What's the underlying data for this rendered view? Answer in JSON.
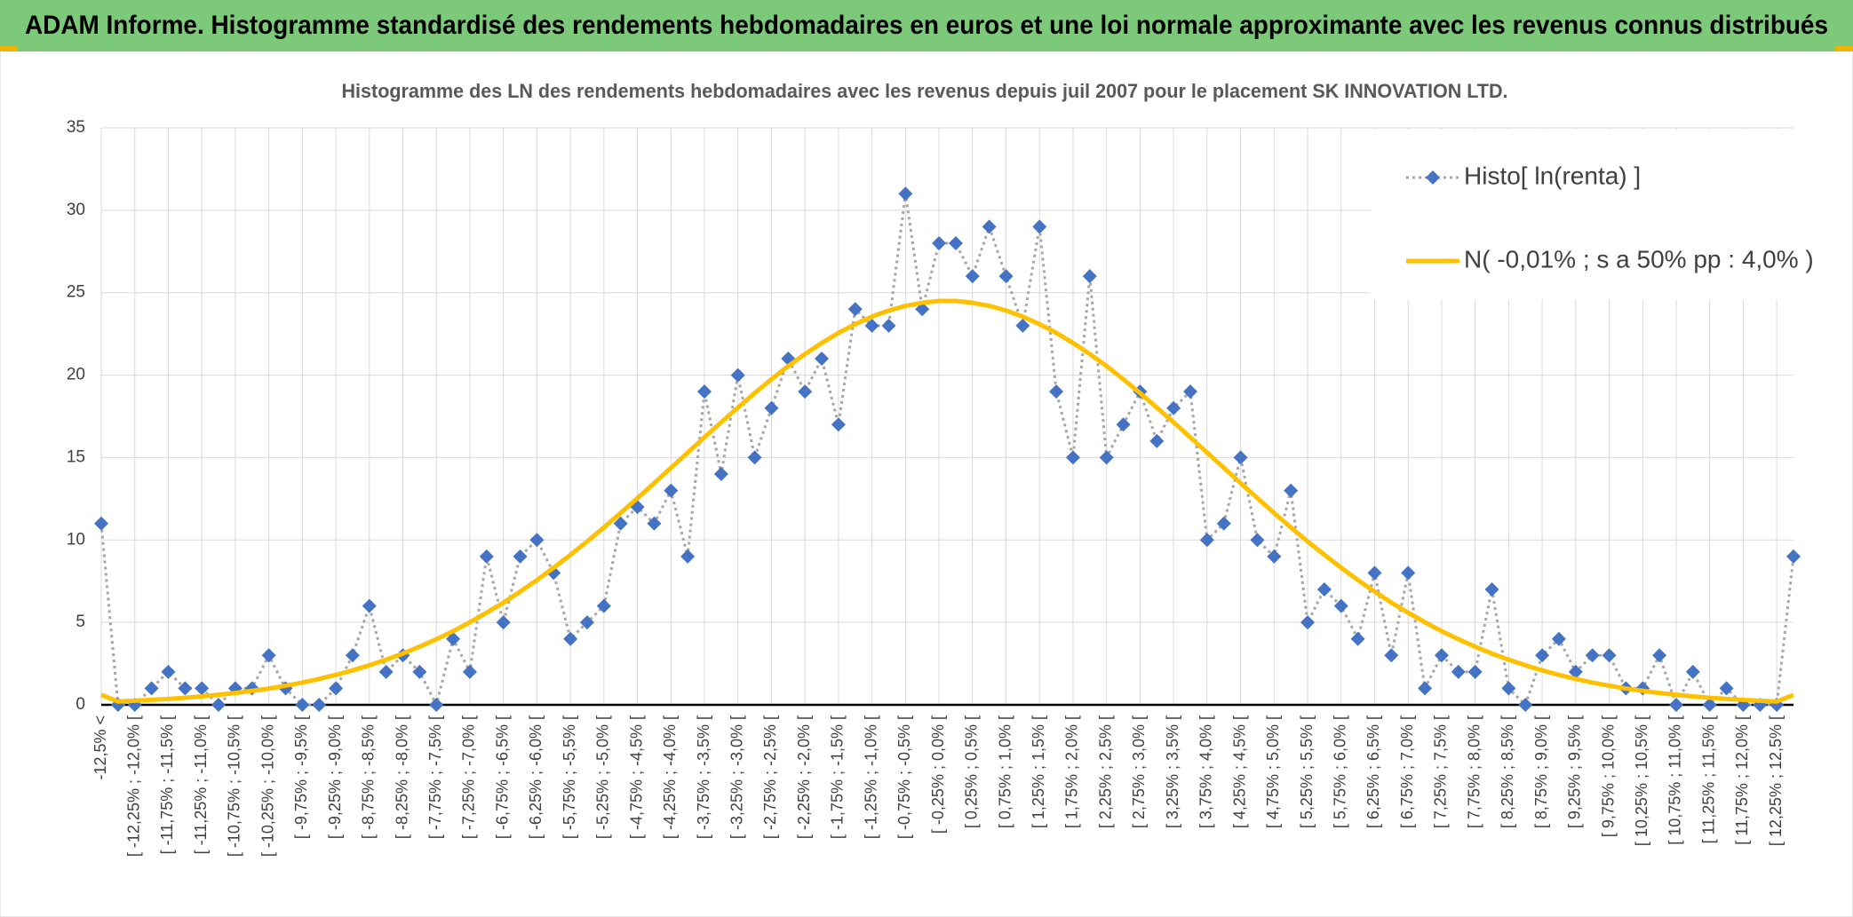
{
  "header": "ADAM Informe. Histogramme standardisé des rendements hebdomadaires en euros et une loi normale approximante avec les revenus connus distribués",
  "chart_data": {
    "type": "line",
    "title": "Histogramme des LN des rendements hebdomadaires avec les revenus depuis juil 2007 pour le placement SK INNOVATION LTD.",
    "categories": [
      "-12,5% <",
      null,
      "[ -12,25% ; -12,0% [",
      null,
      "[ -11,75% ; -11,5% [",
      null,
      "[ -11,25% ; -11,0% [",
      null,
      "[ -10,75% ; -10,5% [",
      null,
      "[ -10,25% ; -10,0% [",
      null,
      "[ -9,75% ; -9,5% [",
      null,
      "[ -9,25% ; -9,0% [",
      null,
      "[ -8,75% ; -8,5% [",
      null,
      "[ -8,25% ; -8,0% [",
      null,
      "[ -7,75% ; -7,5% [",
      null,
      "[ -7,25% ; -7,0% [",
      null,
      "[ -6,75% ; -6,5% [",
      null,
      "[ -6,25% ; -6,0% [",
      null,
      "[ -5,75% ; -5,5% [",
      null,
      "[ -5,25% ; -5,0% [",
      null,
      "[ -4,75% ; -4,5% [",
      null,
      "[ -4,25% ; -4,0% [",
      null,
      "[ -3,75% ; -3,5% [",
      null,
      "[ -3,25% ; -3,0% [",
      null,
      "[ -2,75% ; -2,5% [",
      null,
      "[ -2,25% ; -2,0% [",
      null,
      "[ -1,75% ; -1,5% [",
      null,
      "[ -1,25% ; -1,0% [",
      null,
      "[ -0,75% ; -0,5% [",
      null,
      "[ -0,25% ; 0,0% [",
      null,
      "[ 0,25% ; 0,5% [",
      null,
      "[ 0,75% ; 1,0% [",
      null,
      "[ 1,25% ; 1,5% [",
      null,
      "[ 1,75% ; 2,0% [",
      null,
      "[ 2,25% ; 2,5% [",
      null,
      "[ 2,75% ; 3,0% [",
      null,
      "[ 3,25% ; 3,5% [",
      null,
      "[ 3,75% ; 4,0% [",
      null,
      "[ 4,25% ; 4,5% [",
      null,
      "[ 4,75% ; 5,0% [",
      null,
      "[ 5,25% ; 5,5% [",
      null,
      "[ 5,75% ; 6,0% [",
      null,
      "[ 6,25% ; 6,5% [",
      null,
      "[ 6,75% ; 7,0% [",
      null,
      "[ 7,25% ; 7,5% [",
      null,
      "[ 7,75% ; 8,0% [",
      null,
      "[ 8,25% ; 8,5% [",
      null,
      "[ 8,75% ; 9,0% [",
      null,
      "[ 9,25% ; 9,5% [",
      null,
      "[ 9,75% ; 10,0% [",
      null,
      "[ 10,25% ; 10,5% [",
      null,
      "[ 10,75% ; 11,0% [",
      null,
      "[ 11,25% ; 11,5% [",
      null,
      "[ 11,75% ; 12,0% [",
      null,
      "[ 12,25% ; 12,5% [",
      null
    ],
    "series": [
      {
        "name": "Histo[ ln(renta) ]",
        "color": "#4472c4",
        "marker": "diamond",
        "line_style": "dotted",
        "line_color": "#a6a6a6",
        "values": [
          11,
          0,
          0,
          1,
          2,
          1,
          1,
          0,
          1,
          1,
          3,
          1,
          0,
          0,
          1,
          3,
          6,
          2,
          3,
          2,
          0,
          4,
          2,
          9,
          5,
          9,
          10,
          8,
          4,
          5,
          6,
          11,
          12,
          11,
          13,
          9,
          19,
          14,
          20,
          15,
          18,
          21,
          19,
          21,
          17,
          24,
          23,
          23,
          31,
          24,
          28,
          28,
          26,
          29,
          26,
          23,
          29,
          19,
          15,
          26,
          15,
          17,
          19,
          16,
          18,
          19,
          10,
          11,
          15,
          10,
          9,
          13,
          5,
          7,
          6,
          4,
          8,
          3,
          8,
          1,
          3,
          2,
          2,
          7,
          1,
          0,
          3,
          4,
          2,
          3,
          3,
          1,
          1,
          3,
          0,
          2,
          0,
          1,
          0,
          0,
          0,
          9
        ]
      },
      {
        "name": "N( -0,01% ; s a 50% pp : 4,0% )",
        "color": "#ffc000",
        "marker": "none",
        "line_style": "solid",
        "values": [
          0.6,
          0.2,
          0.25,
          0.3,
          0.36,
          0.43,
          0.51,
          0.61,
          0.72,
          0.85,
          0.99,
          1.16,
          1.35,
          1.57,
          1.82,
          2.09,
          2.4,
          2.74,
          3.11,
          3.53,
          3.98,
          4.47,
          5.01,
          5.59,
          6.2,
          6.87,
          7.57,
          8.32,
          9.1,
          9.91,
          10.76,
          11.64,
          12.54,
          13.45,
          14.38,
          15.3,
          16.23,
          17.14,
          18.03,
          18.91,
          19.75,
          20.55,
          21.28,
          21.95,
          22.56,
          23.09,
          23.55,
          23.92,
          24.2,
          24.39,
          24.5,
          24.5,
          24.39,
          24.2,
          23.92,
          23.55,
          23.09,
          22.56,
          21.95,
          21.28,
          20.55,
          19.75,
          18.91,
          18.03,
          17.14,
          16.23,
          15.3,
          14.38,
          13.45,
          12.54,
          11.64,
          10.76,
          9.91,
          9.1,
          8.32,
          7.57,
          6.87,
          6.2,
          5.59,
          5.01,
          4.47,
          3.98,
          3.53,
          3.11,
          2.74,
          2.4,
          2.09,
          1.82,
          1.57,
          1.35,
          1.16,
          0.99,
          0.85,
          0.72,
          0.61,
          0.51,
          0.43,
          0.36,
          0.3,
          0.25,
          0.2,
          0.6
        ]
      }
    ],
    "ylim": [
      0,
      35
    ],
    "yticks": [
      0,
      5,
      10,
      15,
      20,
      25,
      30,
      35
    ],
    "grid": true,
    "legend": "top-right"
  }
}
